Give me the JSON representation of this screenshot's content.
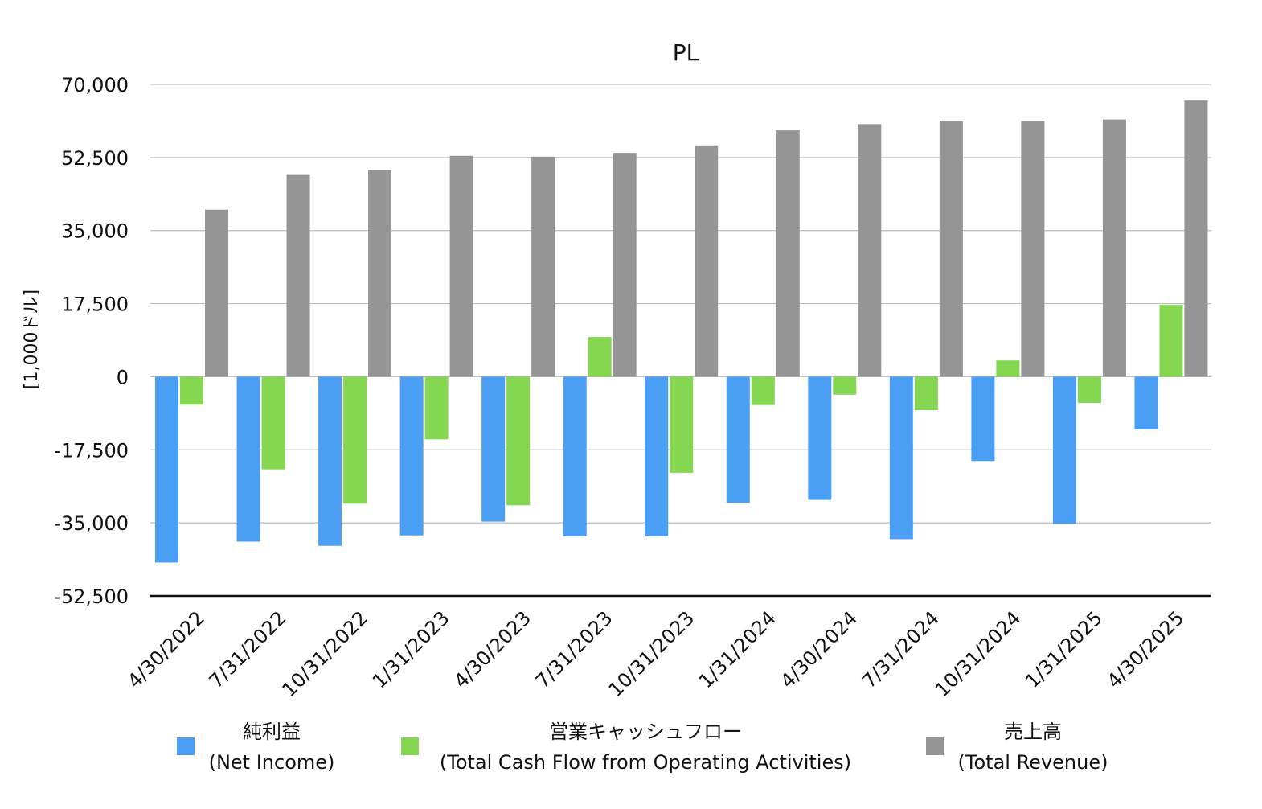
{
  "chart_data": {
    "type": "bar",
    "title": "PL",
    "ylabel": "[1,000ドル]",
    "xlabel": "",
    "ylim": [
      -52500,
      70000
    ],
    "yticks": [
      70000,
      52500,
      35000,
      17500,
      0,
      -17500,
      -35000,
      -52500
    ],
    "ytick_labels": [
      "70,000",
      "52,500",
      "35,000",
      "17,500",
      "0",
      "-17,500",
      "-35,000",
      "-52,500"
    ],
    "grid": true,
    "legend_position": "bottom",
    "categories": [
      "4/30/2022",
      "7/31/2022",
      "10/31/2022",
      "1/31/2023",
      "4/30/2023",
      "7/31/2023",
      "10/31/2023",
      "1/31/2024",
      "4/30/2024",
      "7/31/2024",
      "10/31/2024",
      "1/31/2025",
      "4/30/2025"
    ],
    "series": [
      {
        "name": "純利益",
        "name2": "(Net Income)",
        "color": "#4a9ff5",
        "values": [
          -44500,
          -39500,
          -40500,
          -38000,
          -34700,
          -38200,
          -38200,
          -30200,
          -29500,
          -38900,
          -20200,
          -35200,
          -12600
        ]
      },
      {
        "name": "営業キャッシュフロー",
        "name2": "(Total Cash Flow from Operating Activities)",
        "color": "#85d651",
        "values": [
          -6700,
          -22200,
          -30400,
          -15000,
          -30800,
          9500,
          -23000,
          -6800,
          -4300,
          -8000,
          3900,
          -6300,
          17200
        ]
      },
      {
        "name": "売上高",
        "name2": "(Total Revenue)",
        "color": "#959595",
        "values": [
          40000,
          48500,
          49500,
          52900,
          52700,
          53600,
          55400,
          59000,
          60500,
          61300,
          61300,
          61600,
          66300
        ]
      }
    ]
  }
}
